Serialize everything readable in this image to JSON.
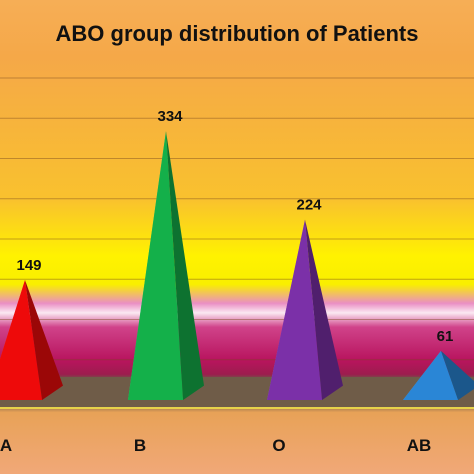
{
  "chart_data": {
    "type": "bar",
    "title": "ABO group distribution of Patients",
    "categories": [
      "A",
      "B",
      "O",
      "AB"
    ],
    "values": [
      149,
      334,
      224,
      61
    ],
    "ylim": [
      0,
      400
    ],
    "grid": true,
    "legend": "none",
    "bar_shape": "pyramid",
    "colors": [
      "#ee0a0a",
      "#14b04a",
      "#7b30a8",
      "#2a86d6"
    ],
    "xlabel": "",
    "ylabel": ""
  }
}
